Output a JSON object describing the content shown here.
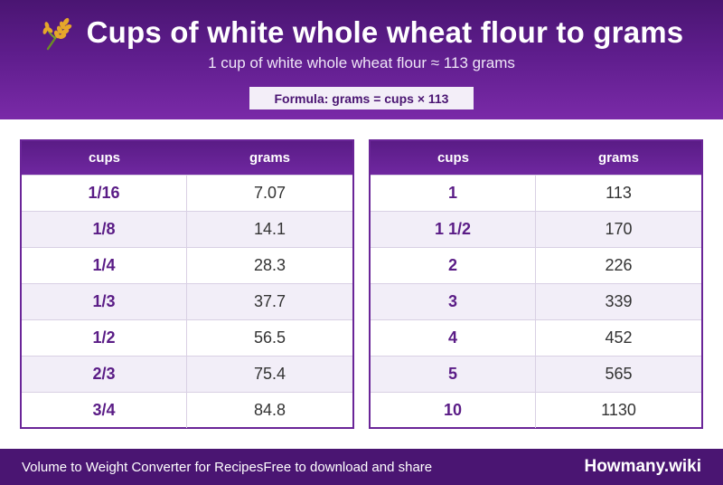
{
  "header": {
    "title": "Cups of white whole wheat flour to grams",
    "subtitle": "1 cup of white whole wheat flour ≈ 113 grams",
    "formula": "Formula: grams = cups × 113",
    "icon": "wheat-icon"
  },
  "tables": [
    {
      "columns": [
        "cups",
        "grams"
      ],
      "rows": [
        {
          "cups": "1/16",
          "grams": "7.07"
        },
        {
          "cups": "1/8",
          "grams": "14.1"
        },
        {
          "cups": "1/4",
          "grams": "28.3"
        },
        {
          "cups": "1/3",
          "grams": "37.7"
        },
        {
          "cups": "1/2",
          "grams": "56.5"
        },
        {
          "cups": "2/3",
          "grams": "75.4"
        },
        {
          "cups": "3/4",
          "grams": "84.8"
        }
      ]
    },
    {
      "columns": [
        "cups",
        "grams"
      ],
      "rows": [
        {
          "cups": "1",
          "grams": "113"
        },
        {
          "cups": "1 1/2",
          "grams": "170"
        },
        {
          "cups": "2",
          "grams": "226"
        },
        {
          "cups": "3",
          "grams": "339"
        },
        {
          "cups": "4",
          "grams": "452"
        },
        {
          "cups": "5",
          "grams": "565"
        },
        {
          "cups": "10",
          "grams": "1130"
        }
      ]
    }
  ],
  "footer": {
    "left_text": "Volume to Weight Converter for Recipes",
    "mid_text": "Free to download and share",
    "brand": "Howmany.wiki"
  },
  "colors": {
    "header_purple": "#5e1d8c",
    "accent_purple": "#6a2598",
    "row_alt": "#f2eef8"
  }
}
